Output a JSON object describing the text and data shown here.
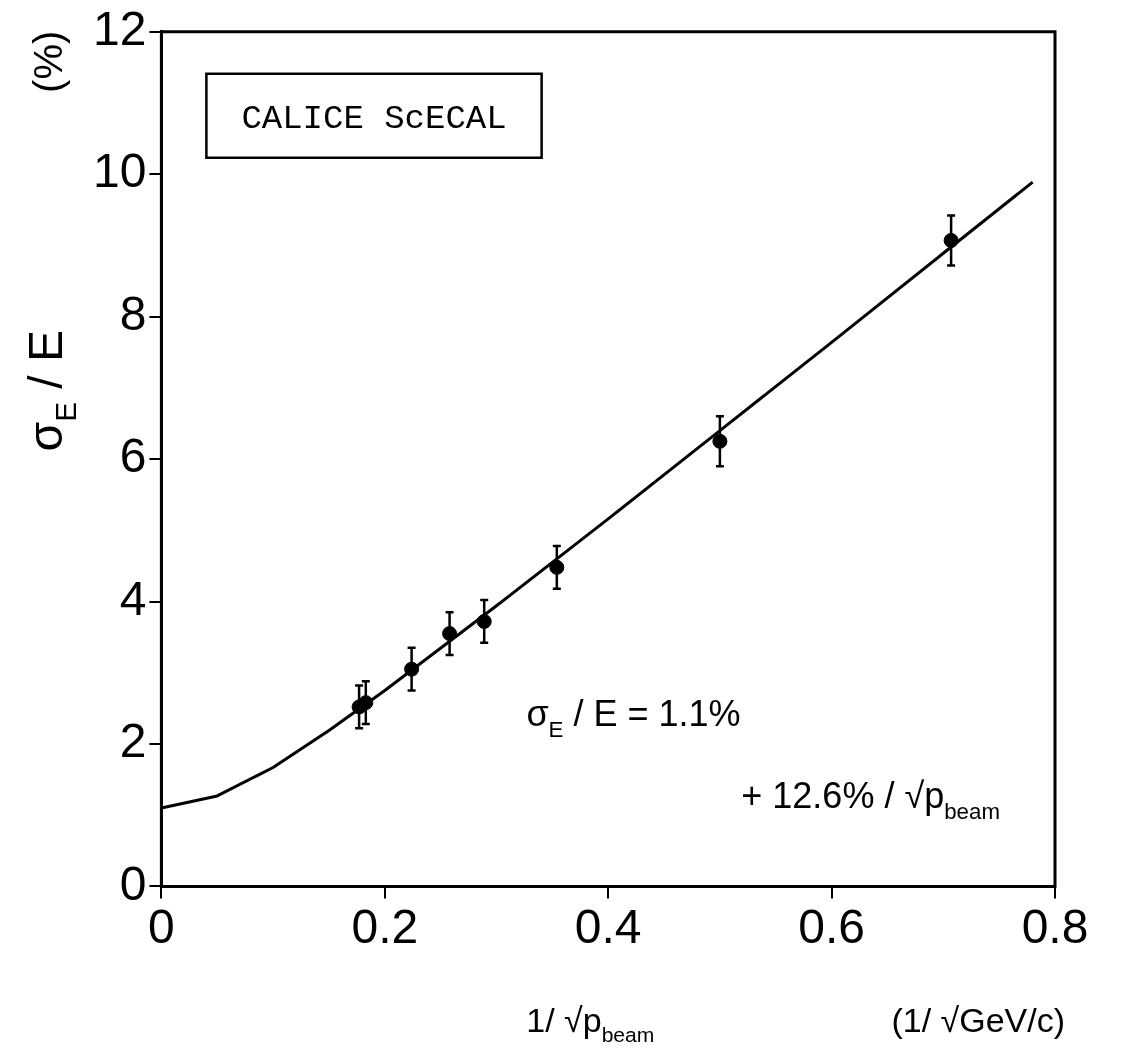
{
  "chart_data": {
    "type": "scatter",
    "xlabel": "1/ √p$_{beam}$",
    "ylabel": "σ$_{E}$ / E",
    "annotations": [
      "CALICE ScECAL",
      "σ$_{E}$ / E = 1.1%",
      "+ 12.6% / √p$_{beam}$",
      "(%)",
      "(1/ √GeV/c)"
    ],
    "xlim": [
      0,
      0.8
    ],
    "xticks": [
      0,
      0.2,
      0.4,
      0.6,
      0.8
    ],
    "ylim": [
      0,
      12
    ],
    "yticks": [
      0,
      2,
      4,
      6,
      8,
      10,
      12
    ],
    "grid": false,
    "legend": false,
    "series": [
      {
        "color": "#000000",
        "marker": "circle",
        "x": [
          0.177,
          0.183,
          0.224,
          0.258,
          0.289,
          0.354,
          0.5,
          0.707
        ],
        "values": [
          2.52,
          2.58,
          3.05,
          3.55,
          3.72,
          4.48,
          6.25,
          9.07
        ],
        "errors": [
          0.3,
          0.3,
          0.3,
          0.3,
          0.3,
          0.3,
          0.35,
          0.35
        ]
      },
      {
        "type": "line",
        "color": "#000000",
        "marker": "none",
        "line_style": "solid",
        "x": [
          0,
          0.05,
          0.1,
          0.15,
          0.2,
          0.3,
          0.4,
          0.5,
          0.6,
          0.7,
          0.78
        ],
        "values": [
          1.1,
          1.27,
          1.67,
          2.19,
          2.75,
          3.94,
          5.16,
          6.4,
          7.64,
          8.89,
          9.89
        ]
      }
    ]
  }
}
